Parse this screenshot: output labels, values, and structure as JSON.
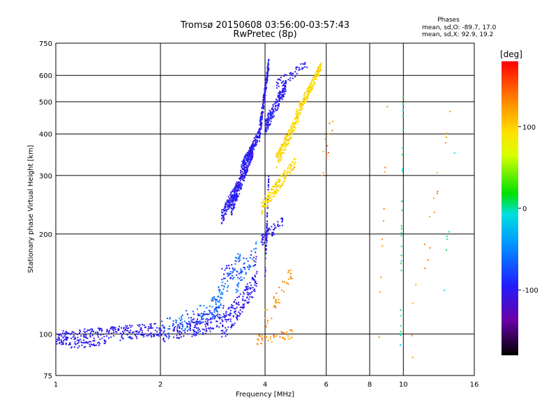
{
  "chart_data": {
    "type": "scatter",
    "title": "Tromsø 20150608 03:56:00-03:57:43",
    "subtitle": "RwPretec (8p)",
    "xlabel": "Frequency [MHz]",
    "ylabel": "Stationary phase Virtual Height [km]",
    "x_scale": "log",
    "y_scale": "log",
    "xlim": [
      1,
      16
    ],
    "ylim": [
      75,
      750
    ],
    "x_ticks": [
      1,
      2,
      4,
      6,
      8,
      10,
      16
    ],
    "x_tick_labels": [
      "1",
      "2",
      "4",
      "6",
      "8",
      "10",
      "16"
    ],
    "y_ticks": [
      75,
      100,
      200,
      300,
      400,
      500,
      600,
      750
    ],
    "y_tick_labels": [
      "75",
      "100",
      "200",
      "300",
      "400",
      "500",
      "600",
      "750"
    ],
    "grid": true,
    "phase_stats": {
      "title": "Phases",
      "line_o": "mean, sd,O: -89.7, 17.0",
      "line_x": "mean, sd,X:  92.9, 19.2"
    },
    "colorbar": {
      "label": "[deg]",
      "range": [
        -180,
        180
      ],
      "ticks": [
        100,
        0,
        -100
      ],
      "tick_labels": [
        "100",
        "0",
        "-100"
      ]
    },
    "series": [
      {
        "color_phase": -100,
        "segments": [
          {
            "f": [
              1.0,
              2.0
            ],
            "h": [
              97,
              103
            ],
            "n": 260,
            "spread": 5
          },
          {
            "f": [
              1.1,
              1.4
            ],
            "h": [
              92,
              95
            ],
            "n": 40,
            "spread": 2
          },
          {
            "f": [
              2.0,
              3.0
            ],
            "h": [
              100,
              108
            ],
            "n": 140,
            "spread": 6
          },
          {
            "f": [
              2.4,
              3.1
            ],
            "h": [
              108,
              118
            ],
            "n": 50,
            "spread": 6
          },
          {
            "f": [
              3.0,
              3.8
            ],
            "h": [
              103,
              145
            ],
            "n": 160,
            "spread": 10
          },
          {
            "f": [
              3.0,
              3.4
            ],
            "h": [
              225,
              290
            ],
            "n": 150,
            "spread": 12
          },
          {
            "f": [
              3.2,
              3.7
            ],
            "h": [
              240,
              360
            ],
            "n": 220,
            "spread": 15
          },
          {
            "f": [
              3.4,
              3.85
            ],
            "h": [
              310,
              400
            ],
            "n": 150,
            "spread": 14
          },
          {
            "f": [
              3.85,
              4.1
            ],
            "h": [
              400,
              650
            ],
            "n": 180,
            "spread": 25
          },
          {
            "f": [
              4.0,
              4.6
            ],
            "h": [
              420,
              560
            ],
            "n": 180,
            "spread": 25
          },
          {
            "f": [
              3.9,
              4.5
            ],
            "h": [
              190,
              220
            ],
            "n": 60,
            "spread": 8
          },
          {
            "f": [
              4.0,
              4.1
            ],
            "h": [
              150,
              300
            ],
            "n": 60,
            "spread": 8
          },
          {
            "f": [
              4.3,
              5.3
            ],
            "h": [
              560,
              650
            ],
            "n": 50,
            "spread": 20
          },
          {
            "f": [
              3.0,
              3.8
            ],
            "h": [
              150,
              170
            ],
            "n": 40,
            "spread": 8
          }
        ]
      },
      {
        "color_phase": -60,
        "segments": [
          {
            "f": [
              2.0,
              3.0
            ],
            "h": [
              102,
              122
            ],
            "n": 90,
            "spread": 8
          },
          {
            "f": [
              2.8,
              3.4
            ],
            "h": [
              118,
              170
            ],
            "n": 70,
            "spread": 10
          },
          {
            "f": [
              3.3,
              3.8
            ],
            "h": [
              140,
              185
            ],
            "n": 40,
            "spread": 10
          }
        ]
      },
      {
        "color_phase": 95,
        "segments": [
          {
            "f": [
              3.9,
              4.9
            ],
            "h": [
              240,
              330
            ],
            "n": 160,
            "spread": 12
          },
          {
            "f": [
              4.3,
              5.0
            ],
            "h": [
              330,
              450
            ],
            "n": 170,
            "spread": 18
          },
          {
            "f": [
              4.9,
              5.8
            ],
            "h": [
              450,
              640
            ],
            "n": 180,
            "spread": 20
          }
        ]
      },
      {
        "color_phase": 130,
        "segments": [
          {
            "f": [
              3.8,
              4.8
            ],
            "h": [
              96,
              100
            ],
            "n": 40,
            "spread": 3
          },
          {
            "f": [
              4.0,
              4.8
            ],
            "h": [
              110,
              155
            ],
            "n": 40,
            "spread": 8
          },
          {
            "f": [
              5.8,
              6.3
            ],
            "h": [
              300,
              470
            ],
            "n": 12,
            "spread": 40
          },
          {
            "f": [
              10.5,
              14.0
            ],
            "h": [
              100,
              530
            ],
            "n": 18,
            "spread": 30
          },
          {
            "f": [
              8.5,
              9.0
            ],
            "h": [
              100,
              480
            ],
            "n": 10,
            "spread": 20
          }
        ]
      },
      {
        "color_phase": 0,
        "segments": [
          {
            "f": [
              9.8,
              10.0
            ],
            "h": [
              95,
              520
            ],
            "n": 30,
            "spread": 25
          },
          {
            "f": [
              13.0,
              14.2
            ],
            "h": [
              130,
              400
            ],
            "n": 6,
            "spread": 20
          }
        ]
      }
    ]
  }
}
